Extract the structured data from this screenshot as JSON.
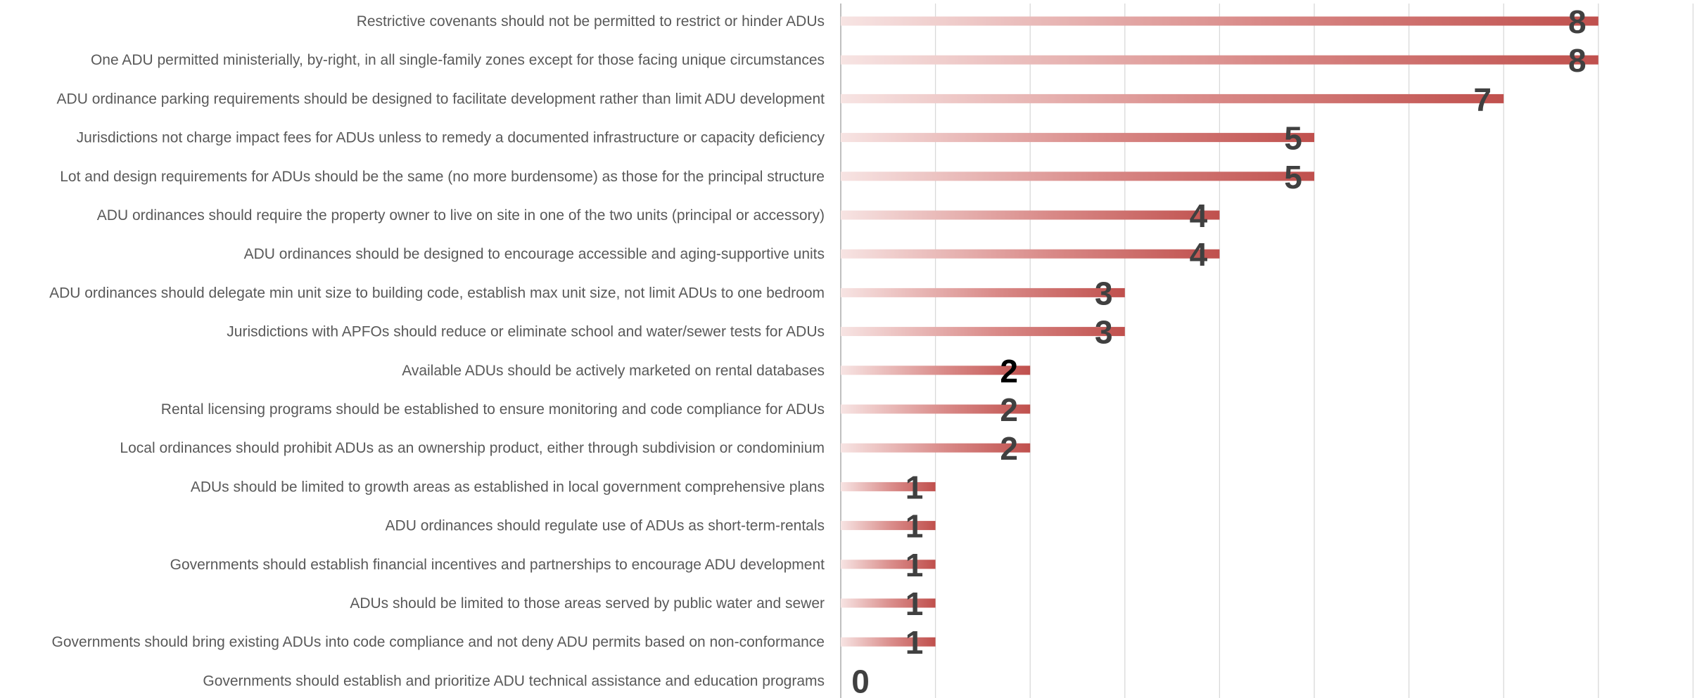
{
  "chart_data": {
    "type": "bar",
    "orientation": "horizontal",
    "categories": [
      "Restrictive covenants should not be permitted to restrict or hinder ADUs",
      "One ADU permitted ministerially, by-right, in all single-family zones except for those facing unique circumstances",
      "ADU ordinance parking requirements should be designed to facilitate development rather than limit ADU development",
      "Jurisdictions not charge impact fees for ADUs unless to remedy a documented infrastructure or capacity deficiency",
      "Lot and design requirements for ADUs should be the same (no more burdensome) as those for the principal structure",
      "ADU ordinances should require the property owner to live on site in one of the two units (principal or accessory)",
      "ADU ordinances should be designed to encourage accessible and aging-supportive units",
      "ADU ordinances should delegate min unit size to building code, establish max unit size, not limit ADUs to one bedroom",
      "Jurisdictions with APFOs should reduce or eliminate school and water/sewer tests for ADUs",
      "Available ADUs should be actively marketed on rental databases",
      "Rental licensing programs should be established to ensure monitoring and code compliance for ADUs",
      "Local ordinances should prohibit ADUs as an ownership product, either through subdivision or condominium",
      "ADUs should be limited to growth areas as established in local government comprehensive plans",
      "ADU ordinances should regulate use of ADUs as short-term-rentals",
      "Governments should establish financial incentives and partnerships to encourage ADU development",
      "ADUs should be limited to those areas served by public water and sewer",
      "Governments should bring existing ADUs into code compliance and not deny ADU permits based on non-conformance",
      "Governments should establish and prioritize ADU technical assistance and education programs"
    ],
    "values": [
      8,
      8,
      7,
      5,
      5,
      4,
      4,
      3,
      3,
      2,
      2,
      2,
      1,
      1,
      1,
      1,
      1,
      0
    ],
    "data_labels": [
      "8",
      "8",
      "7",
      "5",
      "5",
      "4",
      "4",
      "3",
      "3",
      "2",
      "2",
      "2",
      "1",
      "1",
      "1",
      "1",
      "1",
      "0"
    ],
    "xlim": [
      0,
      9
    ],
    "grid": true,
    "legend": "none",
    "title": "",
    "xlabel": "",
    "ylabel": "",
    "colors": {
      "bar": "#c0504d",
      "bar_fade": "#f7e4e3",
      "grid": "#d9d9d9",
      "axis": "#bfbfbf",
      "category_text": "#595959",
      "value_text": "#404040",
      "value_text_emphasis": "#000000"
    },
    "emphasized_label_index": 9
  }
}
